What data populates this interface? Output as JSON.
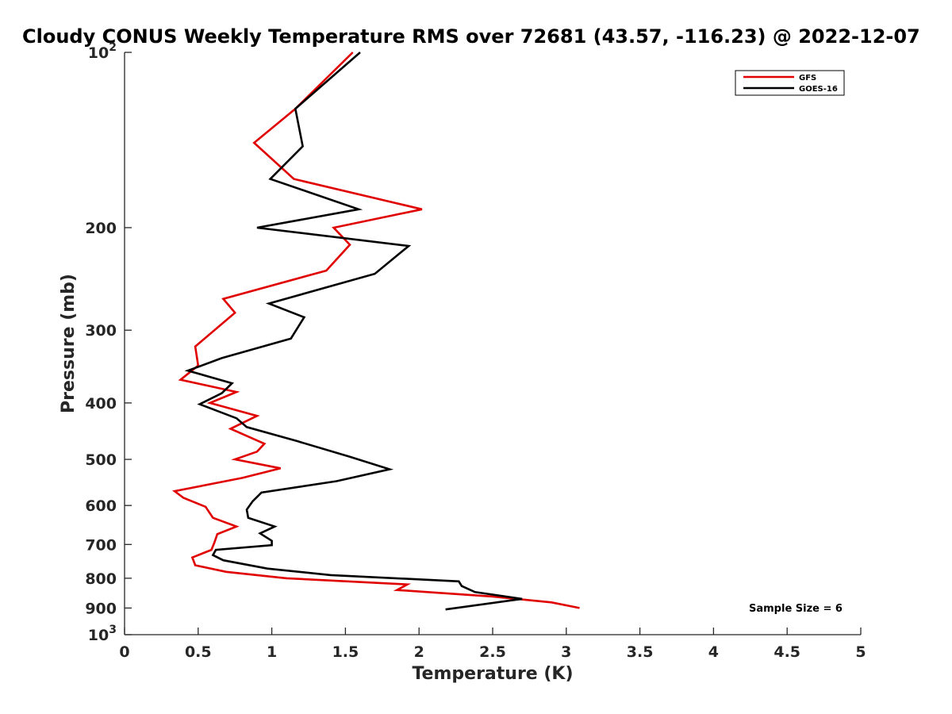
{
  "chart_data": {
    "type": "line",
    "title": "Cloudy CONUS Weekly Temperature RMS over 72681 (43.57, -116.23) @ 2022-12-07",
    "xlabel": "Temperature (K)",
    "ylabel": "Pressure (mb)",
    "xlim": [
      0,
      5
    ],
    "ylim": [
      100,
      1000
    ],
    "y_scale": "log",
    "y_reversed": true,
    "grid": false,
    "legend_position": "top-right",
    "x_ticks": [
      0,
      0.5,
      1,
      1.5,
      2,
      2.5,
      3,
      3.5,
      4,
      4.5,
      5
    ],
    "x_tick_labels": [
      "0",
      "0.5",
      "1",
      "1.5",
      "2",
      "2.5",
      "3",
      "3.5",
      "4",
      "4.5",
      "5"
    ],
    "y_ticks": [
      {
        "value": 100,
        "label": "10",
        "sup": "2"
      },
      {
        "value": 200,
        "label": "200",
        "sup": ""
      },
      {
        "value": 300,
        "label": "300",
        "sup": ""
      },
      {
        "value": 400,
        "label": "400",
        "sup": ""
      },
      {
        "value": 500,
        "label": "500",
        "sup": ""
      },
      {
        "value": 600,
        "label": "600",
        "sup": ""
      },
      {
        "value": 700,
        "label": "700",
        "sup": ""
      },
      {
        "value": 800,
        "label": "800",
        "sup": ""
      },
      {
        "value": 900,
        "label": "900",
        "sup": ""
      },
      {
        "value": 1000,
        "label": "10",
        "sup": "3"
      }
    ],
    "series": [
      {
        "name": "GFS",
        "color": "#e00000",
        "points": [
          [
            1.55,
            100
          ],
          [
            1.16,
            125
          ],
          [
            0.88,
            143
          ],
          [
            1.15,
            165
          ],
          [
            2.02,
            186
          ],
          [
            1.42,
            200
          ],
          [
            1.53,
            214
          ],
          [
            1.37,
            237
          ],
          [
            0.67,
            265
          ],
          [
            0.75,
            280
          ],
          [
            0.48,
            320
          ],
          [
            0.5,
            345
          ],
          [
            0.38,
            365
          ],
          [
            0.76,
            383
          ],
          [
            0.58,
            400
          ],
          [
            0.9,
            421
          ],
          [
            0.72,
            443
          ],
          [
            0.95,
            470
          ],
          [
            0.9,
            485
          ],
          [
            0.75,
            500
          ],
          [
            1.06,
            518
          ],
          [
            0.8,
            538
          ],
          [
            0.34,
            567
          ],
          [
            0.4,
            582
          ],
          [
            0.55,
            603
          ],
          [
            0.6,
            630
          ],
          [
            0.76,
            652
          ],
          [
            0.63,
            672
          ],
          [
            0.61,
            695
          ],
          [
            0.59,
            715
          ],
          [
            0.46,
            737
          ],
          [
            0.48,
            760
          ],
          [
            0.69,
            780
          ],
          [
            1.1,
            800
          ],
          [
            1.92,
            820
          ],
          [
            1.85,
            838
          ],
          [
            2.5,
            860
          ],
          [
            2.9,
            880
          ],
          [
            3.09,
            900
          ]
        ]
      },
      {
        "name": "GOES-16",
        "color": "#000000",
        "points": [
          [
            1.6,
            100
          ],
          [
            1.16,
            125
          ],
          [
            1.21,
            145
          ],
          [
            0.99,
            165
          ],
          [
            1.59,
            186
          ],
          [
            0.9,
            200
          ],
          [
            1.93,
            215
          ],
          [
            1.7,
            240
          ],
          [
            0.98,
            270
          ],
          [
            1.22,
            285
          ],
          [
            1.13,
            310
          ],
          [
            0.66,
            335
          ],
          [
            0.43,
            352
          ],
          [
            0.73,
            370
          ],
          [
            0.66,
            385
          ],
          [
            0.51,
            402
          ],
          [
            0.76,
            425
          ],
          [
            0.83,
            440
          ],
          [
            1.17,
            465
          ],
          [
            1.53,
            495
          ],
          [
            1.8,
            520
          ],
          [
            1.44,
            545
          ],
          [
            0.93,
            570
          ],
          [
            0.87,
            590
          ],
          [
            0.83,
            610
          ],
          [
            0.84,
            630
          ],
          [
            1.02,
            652
          ],
          [
            0.92,
            670
          ],
          [
            1.0,
            690
          ],
          [
            1.0,
            702
          ],
          [
            0.62,
            715
          ],
          [
            0.6,
            730
          ],
          [
            0.67,
            745
          ],
          [
            0.97,
            770
          ],
          [
            1.4,
            790
          ],
          [
            2.27,
            810
          ],
          [
            2.29,
            825
          ],
          [
            2.38,
            845
          ],
          [
            2.7,
            868
          ],
          [
            2.18,
            905
          ]
        ]
      }
    ],
    "annotations": [
      {
        "text": "Sample Size = 6"
      }
    ]
  }
}
